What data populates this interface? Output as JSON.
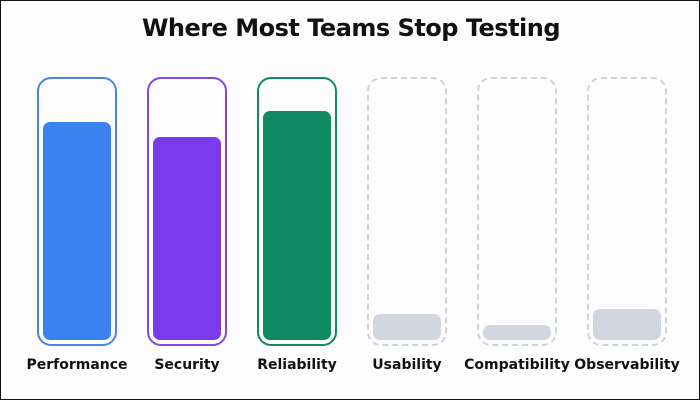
{
  "title": "Where Most Teams Stop Testing",
  "chart_data": {
    "type": "bar",
    "title": "Where Most Teams Stop Testing",
    "xlabel": "",
    "ylabel": "",
    "categories": [
      "Performance",
      "Security",
      "Reliability",
      "Usability",
      "Compatibility",
      "Observability"
    ],
    "values": [
      85,
      79,
      89,
      10,
      6,
      12
    ],
    "ylim": [
      0,
      100
    ],
    "grid": false,
    "legend": "none",
    "colors": [
      "#3b82ee",
      "#7c3aed",
      "#0f8a62",
      "#d1d6e0",
      "#d1d6e0",
      "#d1d6e0"
    ],
    "border_colors": [
      "#4a86e0",
      "#8747e0",
      "#148a62",
      "#cfd2d8",
      "#cfd2d8",
      "#cfd2d8"
    ],
    "border_styles": [
      "solid",
      "solid",
      "solid",
      "dashed",
      "dashed",
      "dashed"
    ]
  }
}
